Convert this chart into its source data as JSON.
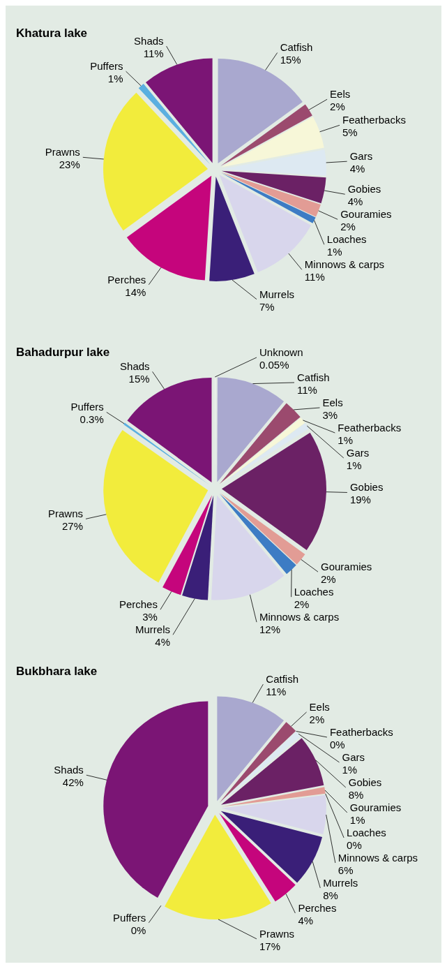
{
  "chart_data": [
    {
      "type": "pie",
      "title": "Khatura lake",
      "categories": [
        "Catfish",
        "Eels",
        "Featherbacks",
        "Gars",
        "Gobies",
        "Gouramies",
        "Loaches",
        "Minnows & carps",
        "Murrels",
        "Perches",
        "Prawns",
        "Puffers",
        "Shads"
      ],
      "values": [
        15,
        2,
        5,
        4,
        4,
        2,
        1,
        11,
        7,
        14,
        23,
        1,
        11
      ],
      "value_labels": [
        "15%",
        "2%",
        "5%",
        "4%",
        "4%",
        "2%",
        "1%",
        "11%",
        "7%",
        "14%",
        "23%",
        "1%",
        "11%"
      ],
      "colors": [
        "#a9a8cf",
        "#9b4a6e",
        "#f7f7d8",
        "#dde9f2",
        "#6b2165",
        "#e29c95",
        "#3d7cc4",
        "#d8d6ec",
        "#3a1f78",
        "#c5057c",
        "#f2ec3c",
        "#5aafe0",
        "#7b1575"
      ]
    },
    {
      "type": "pie",
      "title": "Bahadurpur lake",
      "categories": [
        "Unknown",
        "Catfish",
        "Eels",
        "Featherbacks",
        "Gars",
        "Gobies",
        "Gouramies",
        "Loaches",
        "Minnows & carps",
        "Murrels",
        "Perches",
        "Prawns",
        "Puffers",
        "Shads"
      ],
      "values": [
        0.05,
        11,
        3,
        1,
        1,
        19,
        2,
        2,
        12,
        4,
        3,
        27,
        0.3,
        15
      ],
      "value_labels": [
        "0.05%",
        "11%",
        "3%",
        "1%",
        "1%",
        "19%",
        "2%",
        "2%",
        "12%",
        "4%",
        "3%",
        "27%",
        "0.3%",
        "15%"
      ],
      "colors": [
        "#ffffff",
        "#a9a8cf",
        "#9b4a6e",
        "#f7f7d8",
        "#dde9f2",
        "#6b2165",
        "#e29c95",
        "#3d7cc4",
        "#d8d6ec",
        "#3a1f78",
        "#c5057c",
        "#f2ec3c",
        "#5aafe0",
        "#7b1575"
      ]
    },
    {
      "type": "pie",
      "title": "Bukbhara lake",
      "categories": [
        "Catfish",
        "Eels",
        "Featherbacks",
        "Gars",
        "Gobies",
        "Gouramies",
        "Loaches",
        "Minnows & carps",
        "Murrels",
        "Perches",
        "Prawns",
        "Puffers",
        "Shads"
      ],
      "values": [
        11,
        2,
        0,
        1,
        8,
        1,
        0,
        6,
        8,
        4,
        17,
        0,
        42
      ],
      "value_labels": [
        "11%",
        "2%",
        "0%",
        "1%",
        "8%",
        "1%",
        "0%",
        "6%",
        "8%",
        "4%",
        "17%",
        "0%",
        "42%"
      ],
      "colors": [
        "#a9a8cf",
        "#9b4a6e",
        "#f7f7d8",
        "#dde9f2",
        "#6b2165",
        "#e29c95",
        "#3d7cc4",
        "#d8d6ec",
        "#3a1f78",
        "#c5057c",
        "#f2ec3c",
        "#5aafe0",
        "#7b1575"
      ]
    }
  ]
}
